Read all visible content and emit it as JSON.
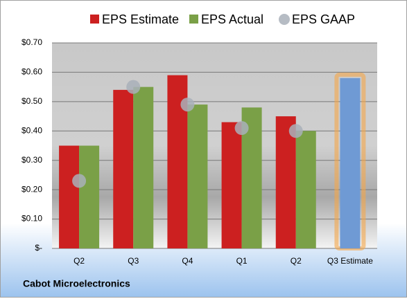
{
  "chart_data": {
    "type": "bar",
    "footer": "Cabot Microelectronics",
    "categories": [
      "Q2",
      "Q3",
      "Q4",
      "Q1",
      "Q2",
      "Q3 Estimate"
    ],
    "series": [
      {
        "name": "EPS Estimate",
        "color": "#cc2020",
        "values": [
          0.35,
          0.54,
          0.59,
          0.43,
          0.45,
          null
        ]
      },
      {
        "name": "EPS Actual",
        "color": "#7aa047",
        "values": [
          0.35,
          0.55,
          0.49,
          0.48,
          0.4,
          null
        ]
      },
      {
        "name": "EPS GAAP",
        "color": "#a9b0ba",
        "values": [
          0.23,
          0.55,
          0.49,
          0.41,
          0.4,
          null
        ]
      }
    ],
    "forecast": {
      "value": 0.58,
      "color": "#6f9ad4",
      "glow": "#f5a64a"
    },
    "ylim": [
      0,
      0.7
    ],
    "yticks": [
      {
        "value": 0,
        "label": "$-"
      },
      {
        "value": 0.1,
        "label": "$0.10"
      },
      {
        "value": 0.2,
        "label": "$0.20"
      },
      {
        "value": 0.3,
        "label": "$0.30"
      },
      {
        "value": 0.4,
        "label": "$0.40"
      },
      {
        "value": 0.5,
        "label": "$0.50"
      },
      {
        "value": 0.6,
        "label": "$0.60"
      },
      {
        "value": 0.7,
        "label": "$0.70"
      }
    ],
    "grid": true
  }
}
